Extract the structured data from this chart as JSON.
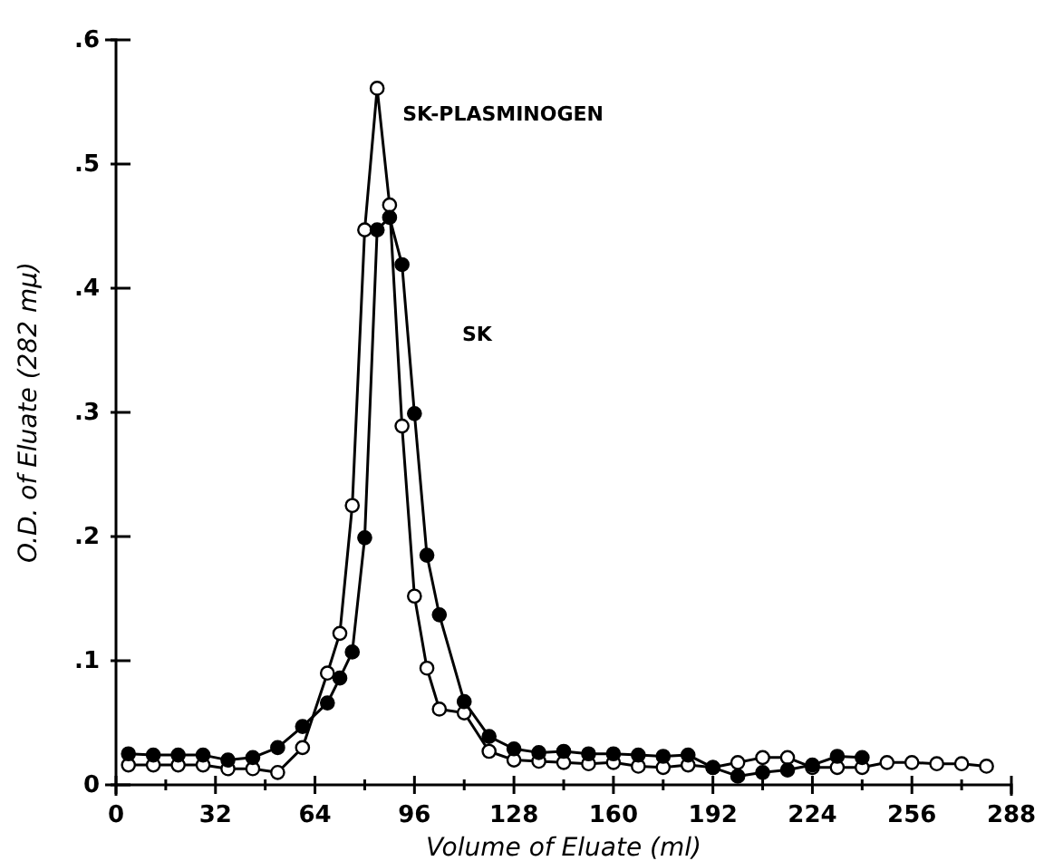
{
  "chart_data": {
    "type": "line",
    "xlabel": "Volume of Eluate (ml)",
    "ylabel": "O.D. of Eluate (282 mμ)",
    "xlim": [
      0,
      288
    ],
    "ylim": [
      0,
      0.6
    ],
    "xticks": [
      0,
      {
        "value": 16,
        "label": null
      },
      32,
      {
        "value": 48,
        "label": null
      },
      64,
      {
        "value": 80,
        "label": null
      },
      96,
      {
        "value": 112,
        "label": null
      },
      128,
      {
        "value": 144,
        "label": null
      },
      160,
      {
        "value": 176,
        "label": null
      },
      192,
      {
        "value": 208,
        "label": null
      },
      224,
      {
        "value": 240,
        "label": null
      },
      256,
      {
        "value": 272,
        "label": null
      },
      288
    ],
    "yticks": [
      0,
      {
        "value": 0.1,
        "label": ".1"
      },
      {
        "value": 0.2,
        "label": ".2"
      },
      {
        "value": 0.3,
        "label": ".3"
      },
      {
        "value": 0.4,
        "label": ".4"
      },
      {
        "value": 0.5,
        "label": ".5"
      },
      {
        "value": 0.6,
        "label": ".6"
      }
    ],
    "grid": false,
    "legend": false,
    "series": [
      {
        "name": "SK-PLASMINOGEN",
        "color": "#000000",
        "marker": "circle",
        "x": [
          4,
          12,
          20,
          28,
          36,
          44,
          52,
          60,
          68,
          72,
          76,
          80,
          84,
          88,
          92,
          96,
          100,
          104,
          112,
          120,
          128,
          136,
          144,
          152,
          160,
          168,
          176,
          184,
          192,
          200,
          208,
          216,
          224,
          232,
          240,
          248,
          256,
          264,
          272,
          280
        ],
        "values": [
          0.016,
          0.016,
          0.016,
          0.016,
          0.013,
          0.013,
          0.01,
          0.03,
          0.09,
          0.122,
          0.225,
          0.447,
          0.561,
          0.467,
          0.289,
          0.152,
          0.094,
          0.061,
          0.058,
          0.027,
          0.02,
          0.019,
          0.018,
          0.017,
          0.018,
          0.015,
          0.014,
          0.016,
          0.014,
          0.018,
          0.022,
          0.022,
          0.014,
          0.014,
          0.014,
          0.018,
          0.018,
          0.017,
          0.017,
          0.015
        ]
      },
      {
        "name": "SK",
        "color": "#000000",
        "marker": "circle",
        "x": [
          4,
          12,
          20,
          28,
          36,
          44,
          52,
          60,
          68,
          72,
          76,
          80,
          84,
          88,
          92,
          96,
          100,
          104,
          112,
          120,
          128,
          136,
          144,
          152,
          160,
          168,
          176,
          184,
          192,
          200,
          208,
          216,
          224,
          232,
          240
        ],
        "values": [
          0.025,
          0.024,
          0.024,
          0.024,
          0.02,
          0.022,
          0.03,
          0.047,
          0.066,
          0.086,
          0.107,
          0.199,
          0.447,
          0.457,
          0.419,
          0.299,
          0.185,
          0.137,
          0.067,
          0.039,
          0.029,
          0.026,
          0.027,
          0.025,
          0.025,
          0.024,
          0.023,
          0.024,
          0.014,
          0.007,
          0.01,
          0.012,
          0.016,
          0.023,
          0.022
        ]
      }
    ]
  }
}
